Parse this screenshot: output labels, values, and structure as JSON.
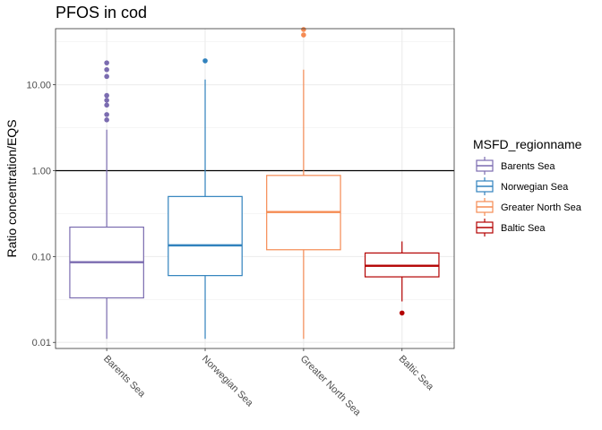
{
  "chart_data": {
    "type": "boxplot",
    "title": "PFOS in cod",
    "xlabel": "",
    "ylabel": "Ratio concentration/EQS",
    "y_scale": "log10",
    "ylim": [
      0.0085,
      45
    ],
    "y_ticks": [
      0.01,
      0.1,
      1,
      10
    ],
    "y_tick_labels": [
      "0.01",
      "0.10",
      "1.00",
      "10.00"
    ],
    "reference_line": 1,
    "grid": true,
    "legend_title": "MSFD_regionname",
    "legend_position": "right",
    "categories": [
      "Barents Sea",
      "Norwegian Sea",
      "Greater North Sea",
      "Baltic Sea"
    ],
    "series": [
      {
        "name": "Barents Sea",
        "color": "#7b6cb0",
        "whisker_low": 0.011,
        "q1": 0.033,
        "median": 0.086,
        "q3": 0.22,
        "whisker_high": 3.0,
        "outliers": [
          3.9,
          4.5,
          5.8,
          6.6,
          7.5,
          12.5,
          15.0,
          18.0
        ]
      },
      {
        "name": "Norwegian Sea",
        "color": "#3182bd",
        "whisker_low": 0.011,
        "q1": 0.06,
        "median": 0.135,
        "q3": 0.5,
        "whisker_high": 11.5,
        "outliers": [
          19.0
        ]
      },
      {
        "name": "Greater North Sea",
        "color": "#f58b53",
        "whisker_low": 0.011,
        "q1": 0.12,
        "median": 0.33,
        "q3": 0.88,
        "whisker_high": 15.0,
        "outliers": [
          38.0,
          44.0
        ]
      },
      {
        "name": "Baltic Sea",
        "color": "#b30000",
        "whisker_low": 0.03,
        "q1": 0.058,
        "median": 0.078,
        "q3": 0.11,
        "whisker_high": 0.15,
        "outliers": [
          0.022
        ]
      }
    ]
  }
}
